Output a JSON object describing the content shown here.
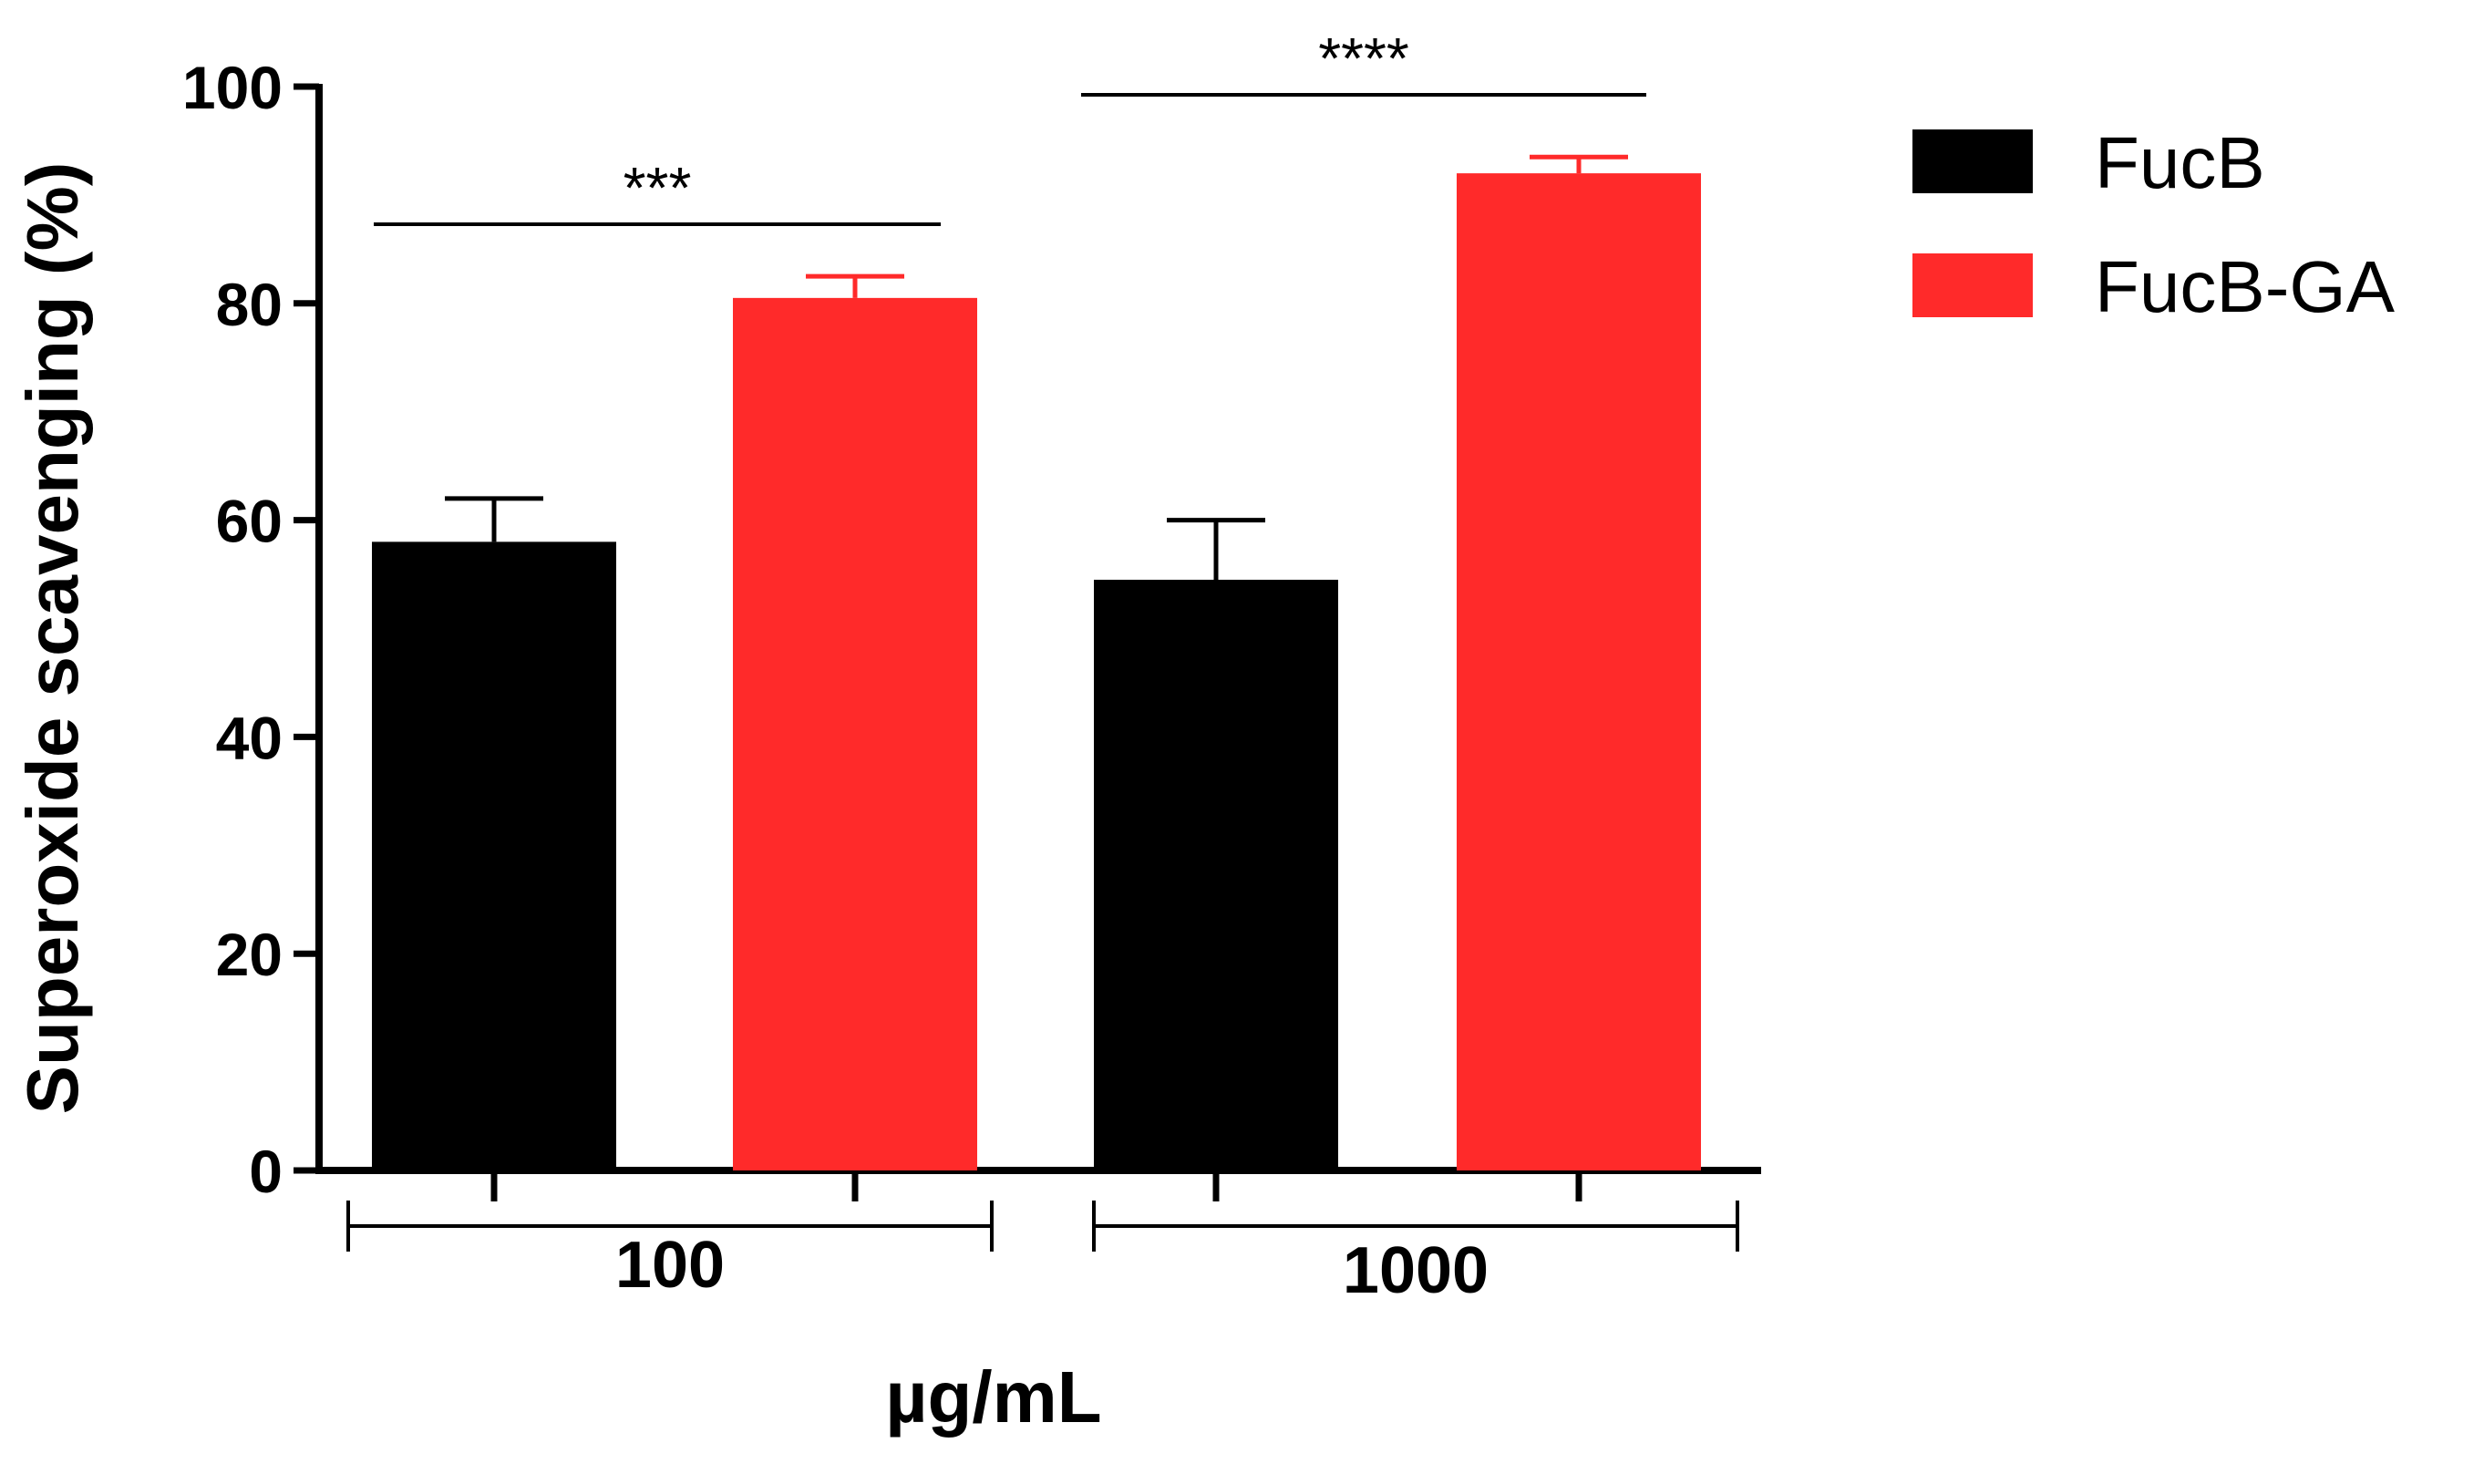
{
  "chart_data": {
    "type": "bar",
    "title": "",
    "xlabel": "µg/mL",
    "ylabel": "Superoxide scavenging (%)",
    "ylim": [
      0,
      100
    ],
    "yticks": [
      0,
      20,
      40,
      60,
      80,
      100
    ],
    "ytick_labels": [
      "0",
      "20",
      "40",
      "60",
      "80",
      "100"
    ],
    "categories": [
      "100",
      "1000"
    ],
    "series": [
      {
        "name": "FucB",
        "color": "#000000",
        "values": [
          58,
          54.5
        ],
        "errors": [
          4,
          5.5
        ]
      },
      {
        "name": "FucB-GA",
        "color": "#ff2a2a",
        "values": [
          80.5,
          92
        ],
        "errors": [
          2,
          1.5
        ]
      }
    ],
    "significance": [
      {
        "category_index": 0,
        "label": "***"
      },
      {
        "category_index": 1,
        "label": "****"
      }
    ],
    "legend_position": "top-right"
  }
}
